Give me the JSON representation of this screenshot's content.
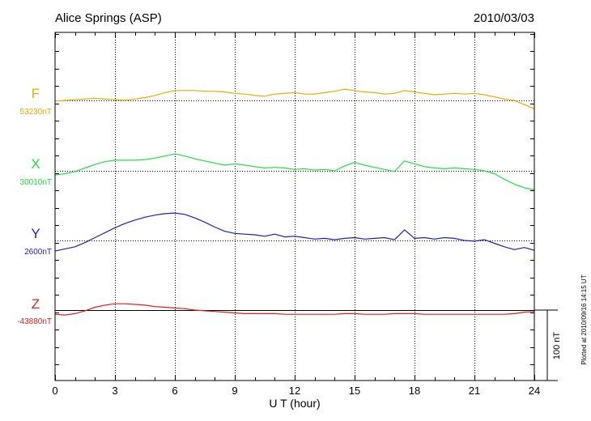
{
  "chart_data": {
    "type": "line",
    "title": "Alice Springs (ASP)",
    "date": "2010/03/03",
    "xlabel": "U T (hour)",
    "xlim": [
      0,
      24
    ],
    "xticks": [
      "0",
      "3",
      "6",
      "9",
      "12",
      "15",
      "18",
      "21",
      "24"
    ],
    "scale_bar_label": "100 nT",
    "plotted_note": "Plotted at 2010/09/16 14:15 UT",
    "grid": true,
    "series": [
      {
        "name": "F",
        "baseline_label": "53230nT",
        "color": "#f0a800",
        "x": [
          0,
          0.5,
          1,
          1.5,
          2,
          2.5,
          3,
          3.5,
          4,
          4.5,
          5,
          5.5,
          6,
          6.5,
          7,
          7.5,
          8,
          8.5,
          9,
          9.5,
          10,
          10.5,
          11,
          11.5,
          12,
          12.5,
          13,
          13.5,
          14,
          14.5,
          15,
          15.5,
          16,
          16.5,
          17,
          17.5,
          18,
          18.5,
          19,
          19.5,
          20,
          20.5,
          21,
          21.5,
          22,
          22.5,
          23,
          23.5,
          24
        ],
        "y": [
          53229,
          53230,
          53231,
          53232,
          53233,
          53232,
          53231,
          53230,
          53232,
          53234,
          53237,
          53241,
          53244,
          53244,
          53244,
          53243,
          53243,
          53242,
          53240,
          53239,
          53237,
          53236,
          53239,
          53240,
          53241,
          53239,
          53239,
          53241,
          53243,
          53246,
          53244,
          53242,
          53241,
          53239,
          53240,
          53244,
          53242,
          53240,
          53238,
          53239,
          53240,
          53239,
          53240,
          53238,
          53235,
          53232,
          53230,
          53224,
          53218
        ]
      },
      {
        "name": "X",
        "baseline_label": "30010nT",
        "color": "#20e040",
        "x": [
          0,
          0.5,
          1,
          1.5,
          2,
          2.5,
          3,
          3.5,
          4,
          4.5,
          5,
          5.5,
          6,
          6.5,
          7,
          7.5,
          8,
          8.5,
          9,
          9.5,
          10,
          10.5,
          11,
          11.5,
          12,
          12.5,
          13,
          13.5,
          14,
          14.5,
          15,
          15.5,
          16,
          16.5,
          17,
          17.5,
          18,
          18.5,
          19,
          19.5,
          20,
          20.5,
          21,
          21.5,
          22,
          22.5,
          23,
          23.5,
          24
        ],
        "y": [
          30004,
          30006,
          30009,
          30014,
          30019,
          30023,
          30025,
          30025,
          30025,
          30026,
          30028,
          30031,
          30034,
          30031,
          30027,
          30024,
          30021,
          30018,
          30020,
          30018,
          30016,
          30014,
          30015,
          30014,
          30012,
          30013,
          30011,
          30012,
          30010,
          30017,
          30022,
          30018,
          30015,
          30012,
          30009,
          30024,
          30020,
          30016,
          30014,
          30013,
          30014,
          30013,
          30012,
          30010,
          30006,
          29998,
          29991,
          29986,
          29983
        ]
      },
      {
        "name": "Y",
        "baseline_label": "2600nT",
        "color": "#1e1ec8",
        "x": [
          0,
          0.5,
          1,
          1.5,
          2,
          2.5,
          3,
          3.5,
          4,
          4.5,
          5,
          5.5,
          6,
          6.5,
          7,
          7.5,
          8,
          8.5,
          9,
          9.5,
          10,
          10.5,
          11,
          11.5,
          12,
          12.5,
          13,
          13.5,
          14,
          14.5,
          15,
          15.5,
          16,
          16.5,
          17,
          17.5,
          18,
          18.5,
          19,
          19.5,
          20,
          20.5,
          21,
          21.5,
          22,
          22.5,
          23,
          23.5,
          24
        ],
        "y": [
          2585,
          2588,
          2591,
          2597,
          2604,
          2611,
          2618,
          2624,
          2629,
          2633,
          2636,
          2638,
          2639,
          2637,
          2632,
          2626,
          2619,
          2613,
          2610,
          2609,
          2608,
          2606,
          2609,
          2605,
          2606,
          2604,
          2602,
          2603,
          2601,
          2603,
          2604,
          2602,
          2603,
          2604,
          2601,
          2615,
          2603,
          2604,
          2602,
          2604,
          2603,
          2600,
          2599,
          2601,
          2596,
          2591,
          2587,
          2590,
          2586
        ]
      },
      {
        "name": "Z",
        "baseline_label": "-43880nT",
        "color": "#e02020",
        "x": [
          0,
          0.5,
          1,
          1.5,
          2,
          2.5,
          3,
          3.5,
          4,
          4.5,
          5,
          5.5,
          6,
          6.5,
          7,
          7.5,
          8,
          8.5,
          9,
          9.5,
          10,
          10.5,
          11,
          11.5,
          12,
          12.5,
          13,
          13.5,
          14,
          14.5,
          15,
          15.5,
          16,
          16.5,
          17,
          17.5,
          18,
          18.5,
          19,
          19.5,
          20,
          20.5,
          21,
          21.5,
          22,
          22.5,
          23,
          23.5,
          24
        ],
        "y": [
          -43886,
          -43887,
          -43885,
          -43881,
          -43876,
          -43873,
          -43871,
          -43871,
          -43872,
          -43873,
          -43875,
          -43876,
          -43877,
          -43878,
          -43880,
          -43881,
          -43882,
          -43883,
          -43884,
          -43885,
          -43885,
          -43885,
          -43885,
          -43886,
          -43886,
          -43886,
          -43886,
          -43886,
          -43886,
          -43885,
          -43885,
          -43886,
          -43886,
          -43886,
          -43885,
          -43885,
          -43885,
          -43886,
          -43886,
          -43886,
          -43886,
          -43886,
          -43886,
          -43886,
          -43886,
          -43886,
          -43885,
          -43883,
          -43882
        ]
      }
    ]
  }
}
